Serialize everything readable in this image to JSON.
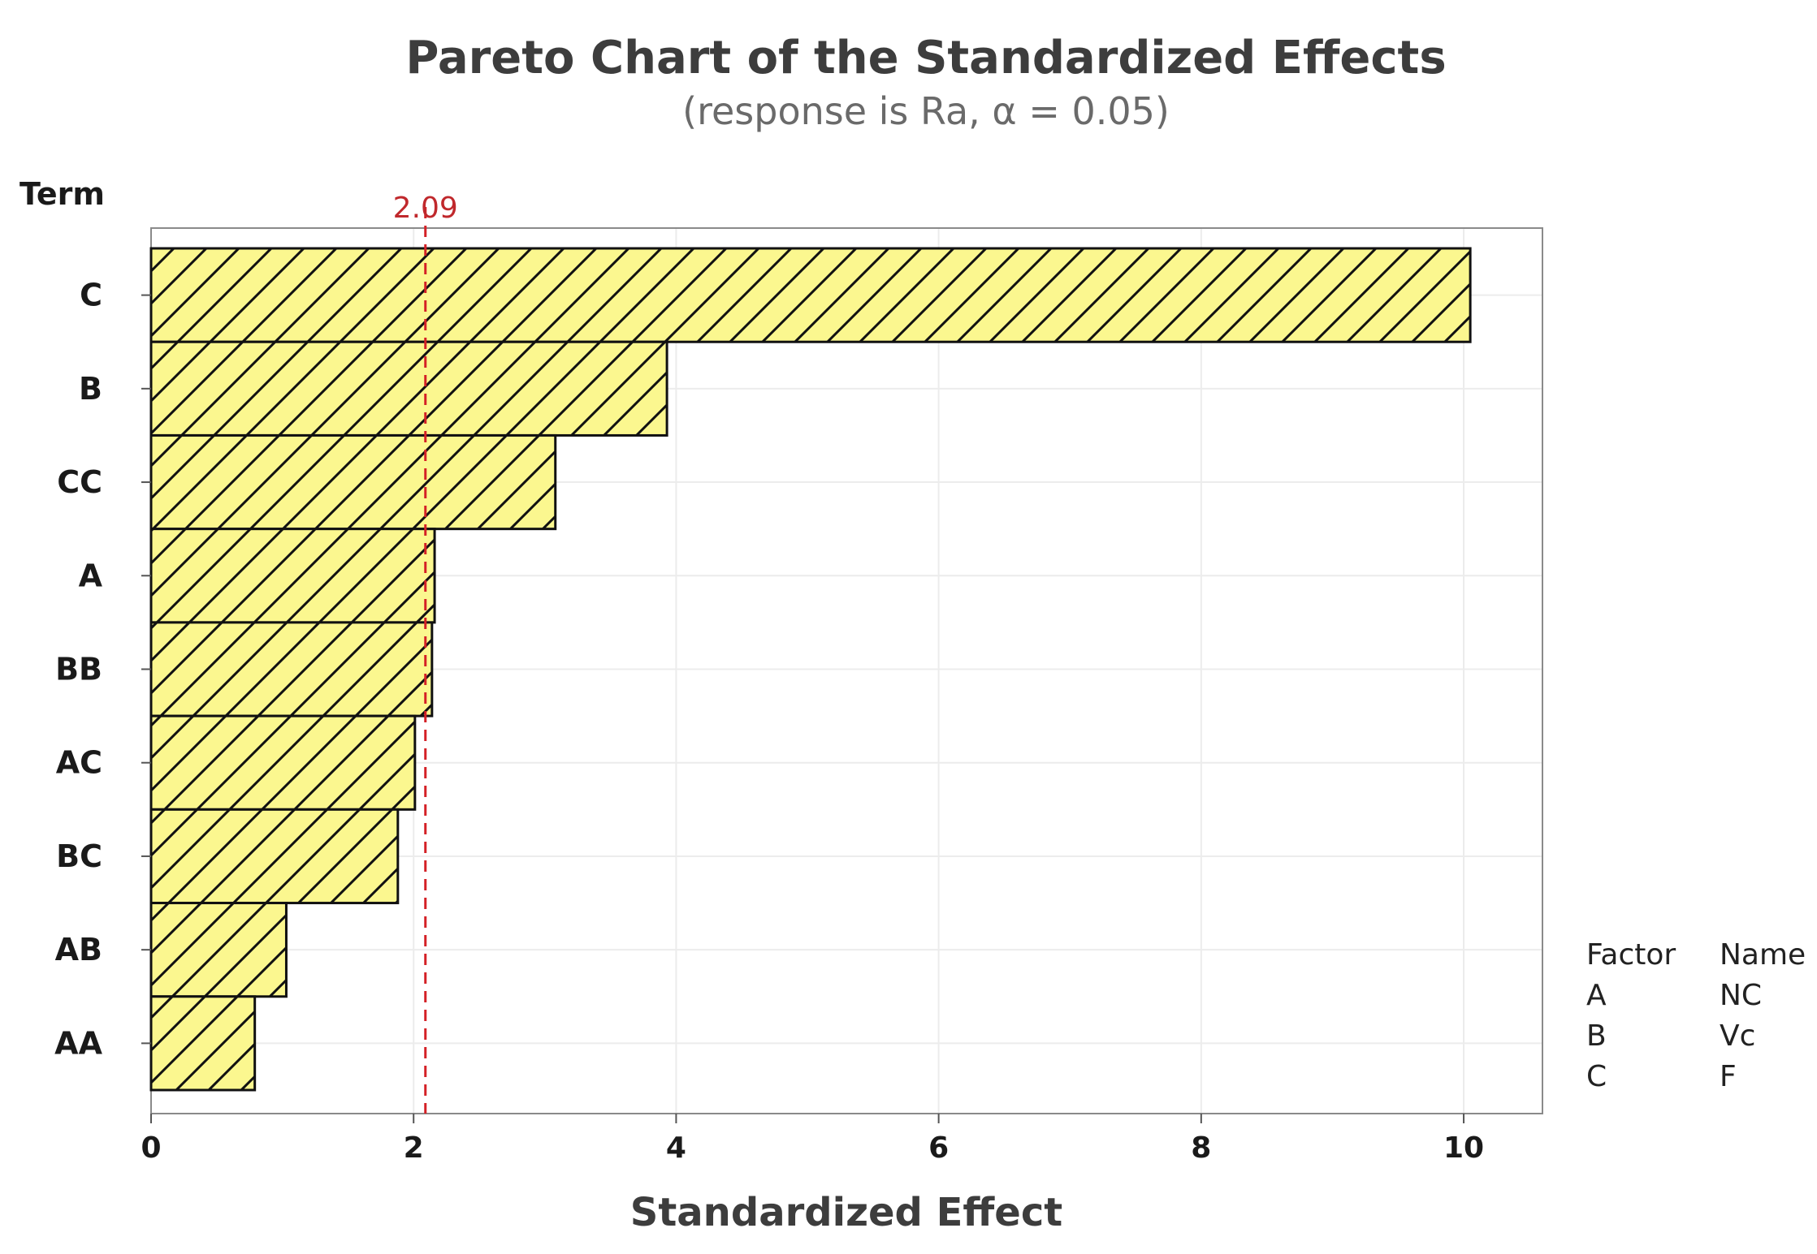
{
  "chart_data": {
    "type": "bar",
    "orientation": "horizontal",
    "title": "Pareto Chart of the Standardized Effects",
    "subtitle": "(response is Ra, α = 0.05)",
    "ylabel": "Term",
    "xlabel": "Standardized Effect",
    "categories": [
      "C",
      "B",
      "CC",
      "A",
      "BB",
      "AC",
      "BC",
      "AB",
      "AA"
    ],
    "values": [
      10.05,
      3.93,
      3.08,
      2.16,
      2.14,
      2.01,
      1.88,
      1.03,
      0.79
    ],
    "xlim": [
      0,
      10.6
    ],
    "xticks": [
      0,
      2,
      4,
      6,
      8,
      10
    ],
    "xtick_labels": [
      "0",
      "2",
      "4",
      "6",
      "8",
      "10"
    ],
    "reference_line": {
      "value": 2.09,
      "label": "2.09"
    },
    "grid": true,
    "bar_fill": "#fbf78f",
    "bar_hatch": "diagonal",
    "reference_color": "#d42026",
    "legend": {
      "position": "right",
      "headers": [
        "Factor",
        "Name"
      ],
      "rows": [
        {
          "factor": "A",
          "name": "NC"
        },
        {
          "factor": "B",
          "name": "Vc"
        },
        {
          "factor": "C",
          "name": "F"
        }
      ]
    }
  }
}
